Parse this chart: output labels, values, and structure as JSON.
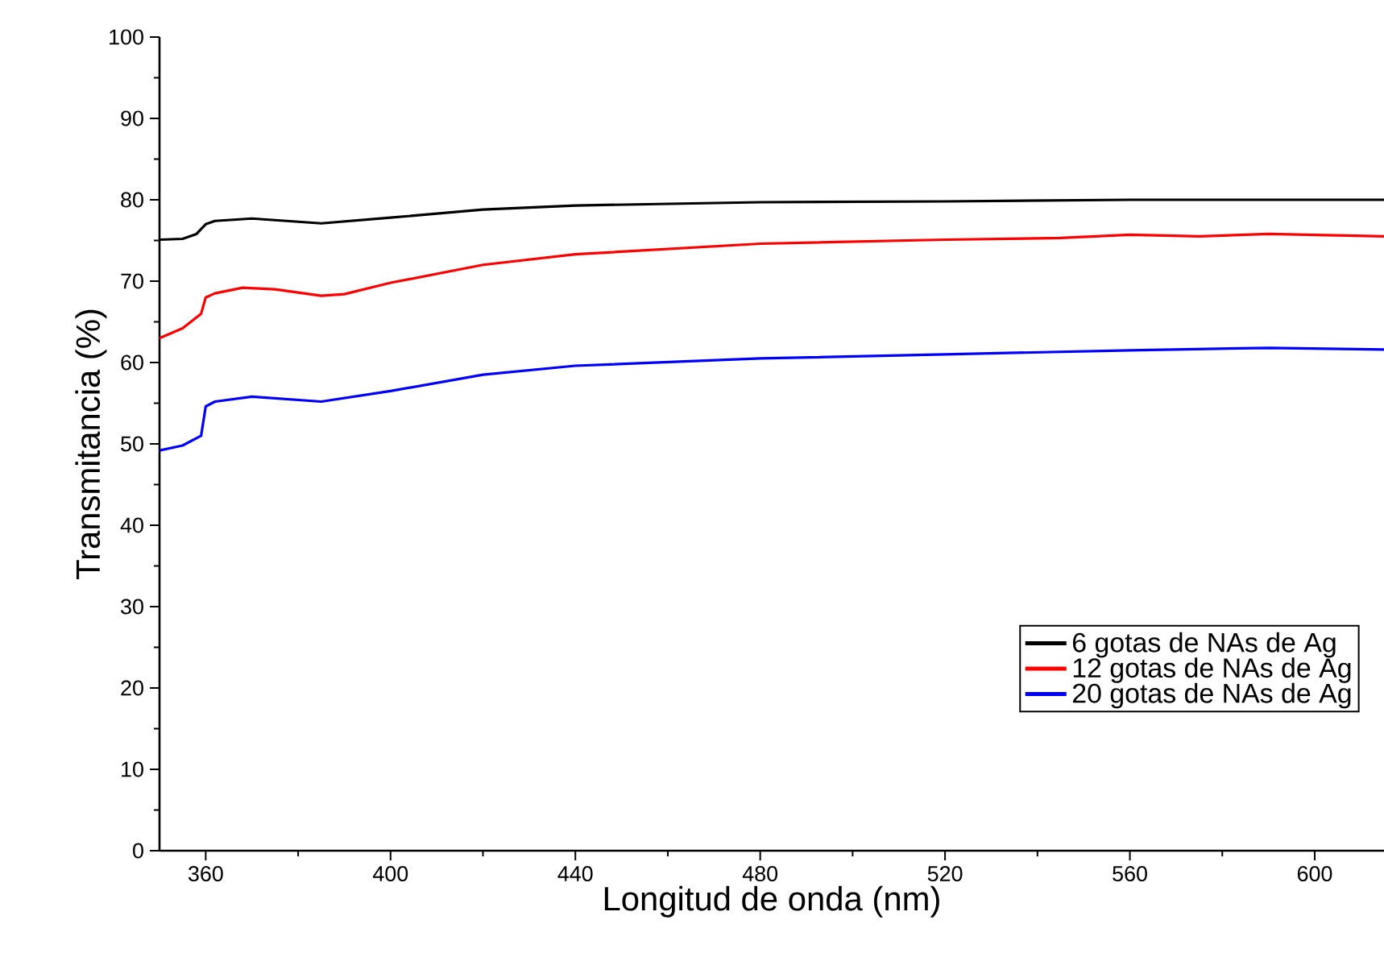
{
  "chart_data": {
    "type": "line",
    "xlabel": "Longitud de onda (nm)",
    "ylabel": "Transmitancia (%)",
    "xlim": [
      350,
      615
    ],
    "ylim": [
      0,
      100
    ],
    "xticks": [
      360,
      400,
      440,
      480,
      520,
      560,
      600
    ],
    "yticks": [
      0,
      10,
      20,
      30,
      40,
      50,
      60,
      70,
      80,
      90,
      100
    ],
    "legend": "bottom right",
    "grid": false,
    "marker": "none",
    "line_style": "solid",
    "series": [
      {
        "name": "6 gotas de NAs de Ag",
        "color": "#000000",
        "x": [
          350,
          355,
          358,
          360,
          362,
          370,
          385,
          400,
          420,
          440,
          480,
          520,
          560,
          600,
          615
        ],
        "values": [
          75.1,
          75.2,
          75.8,
          77,
          77.4,
          77.7,
          77.1,
          77.8,
          78.8,
          79.3,
          79.7,
          79.8,
          80,
          80,
          80
        ]
      },
      {
        "name": "12 gotas de NAs de Ag",
        "color": "#ff0000",
        "x": [
          350,
          355,
          359,
          360,
          362,
          368,
          375,
          385,
          390,
          400,
          420,
          440,
          480,
          520,
          545,
          560,
          575,
          590,
          615
        ],
        "values": [
          63,
          64.2,
          66,
          68,
          68.5,
          69.2,
          69,
          68.2,
          68.4,
          69.8,
          72,
          73.3,
          74.6,
          75.1,
          75.3,
          75.7,
          75.5,
          75.8,
          75.5
        ]
      },
      {
        "name": "20 gotas de NAs de Ag",
        "color": "#0000ff",
        "x": [
          350,
          355,
          359,
          360,
          362,
          370,
          385,
          400,
          420,
          440,
          480,
          520,
          560,
          590,
          615
        ],
        "values": [
          49.2,
          49.8,
          51,
          54.6,
          55.2,
          55.8,
          55.2,
          56.5,
          58.5,
          59.6,
          60.5,
          61,
          61.5,
          61.8,
          61.6
        ]
      }
    ]
  }
}
